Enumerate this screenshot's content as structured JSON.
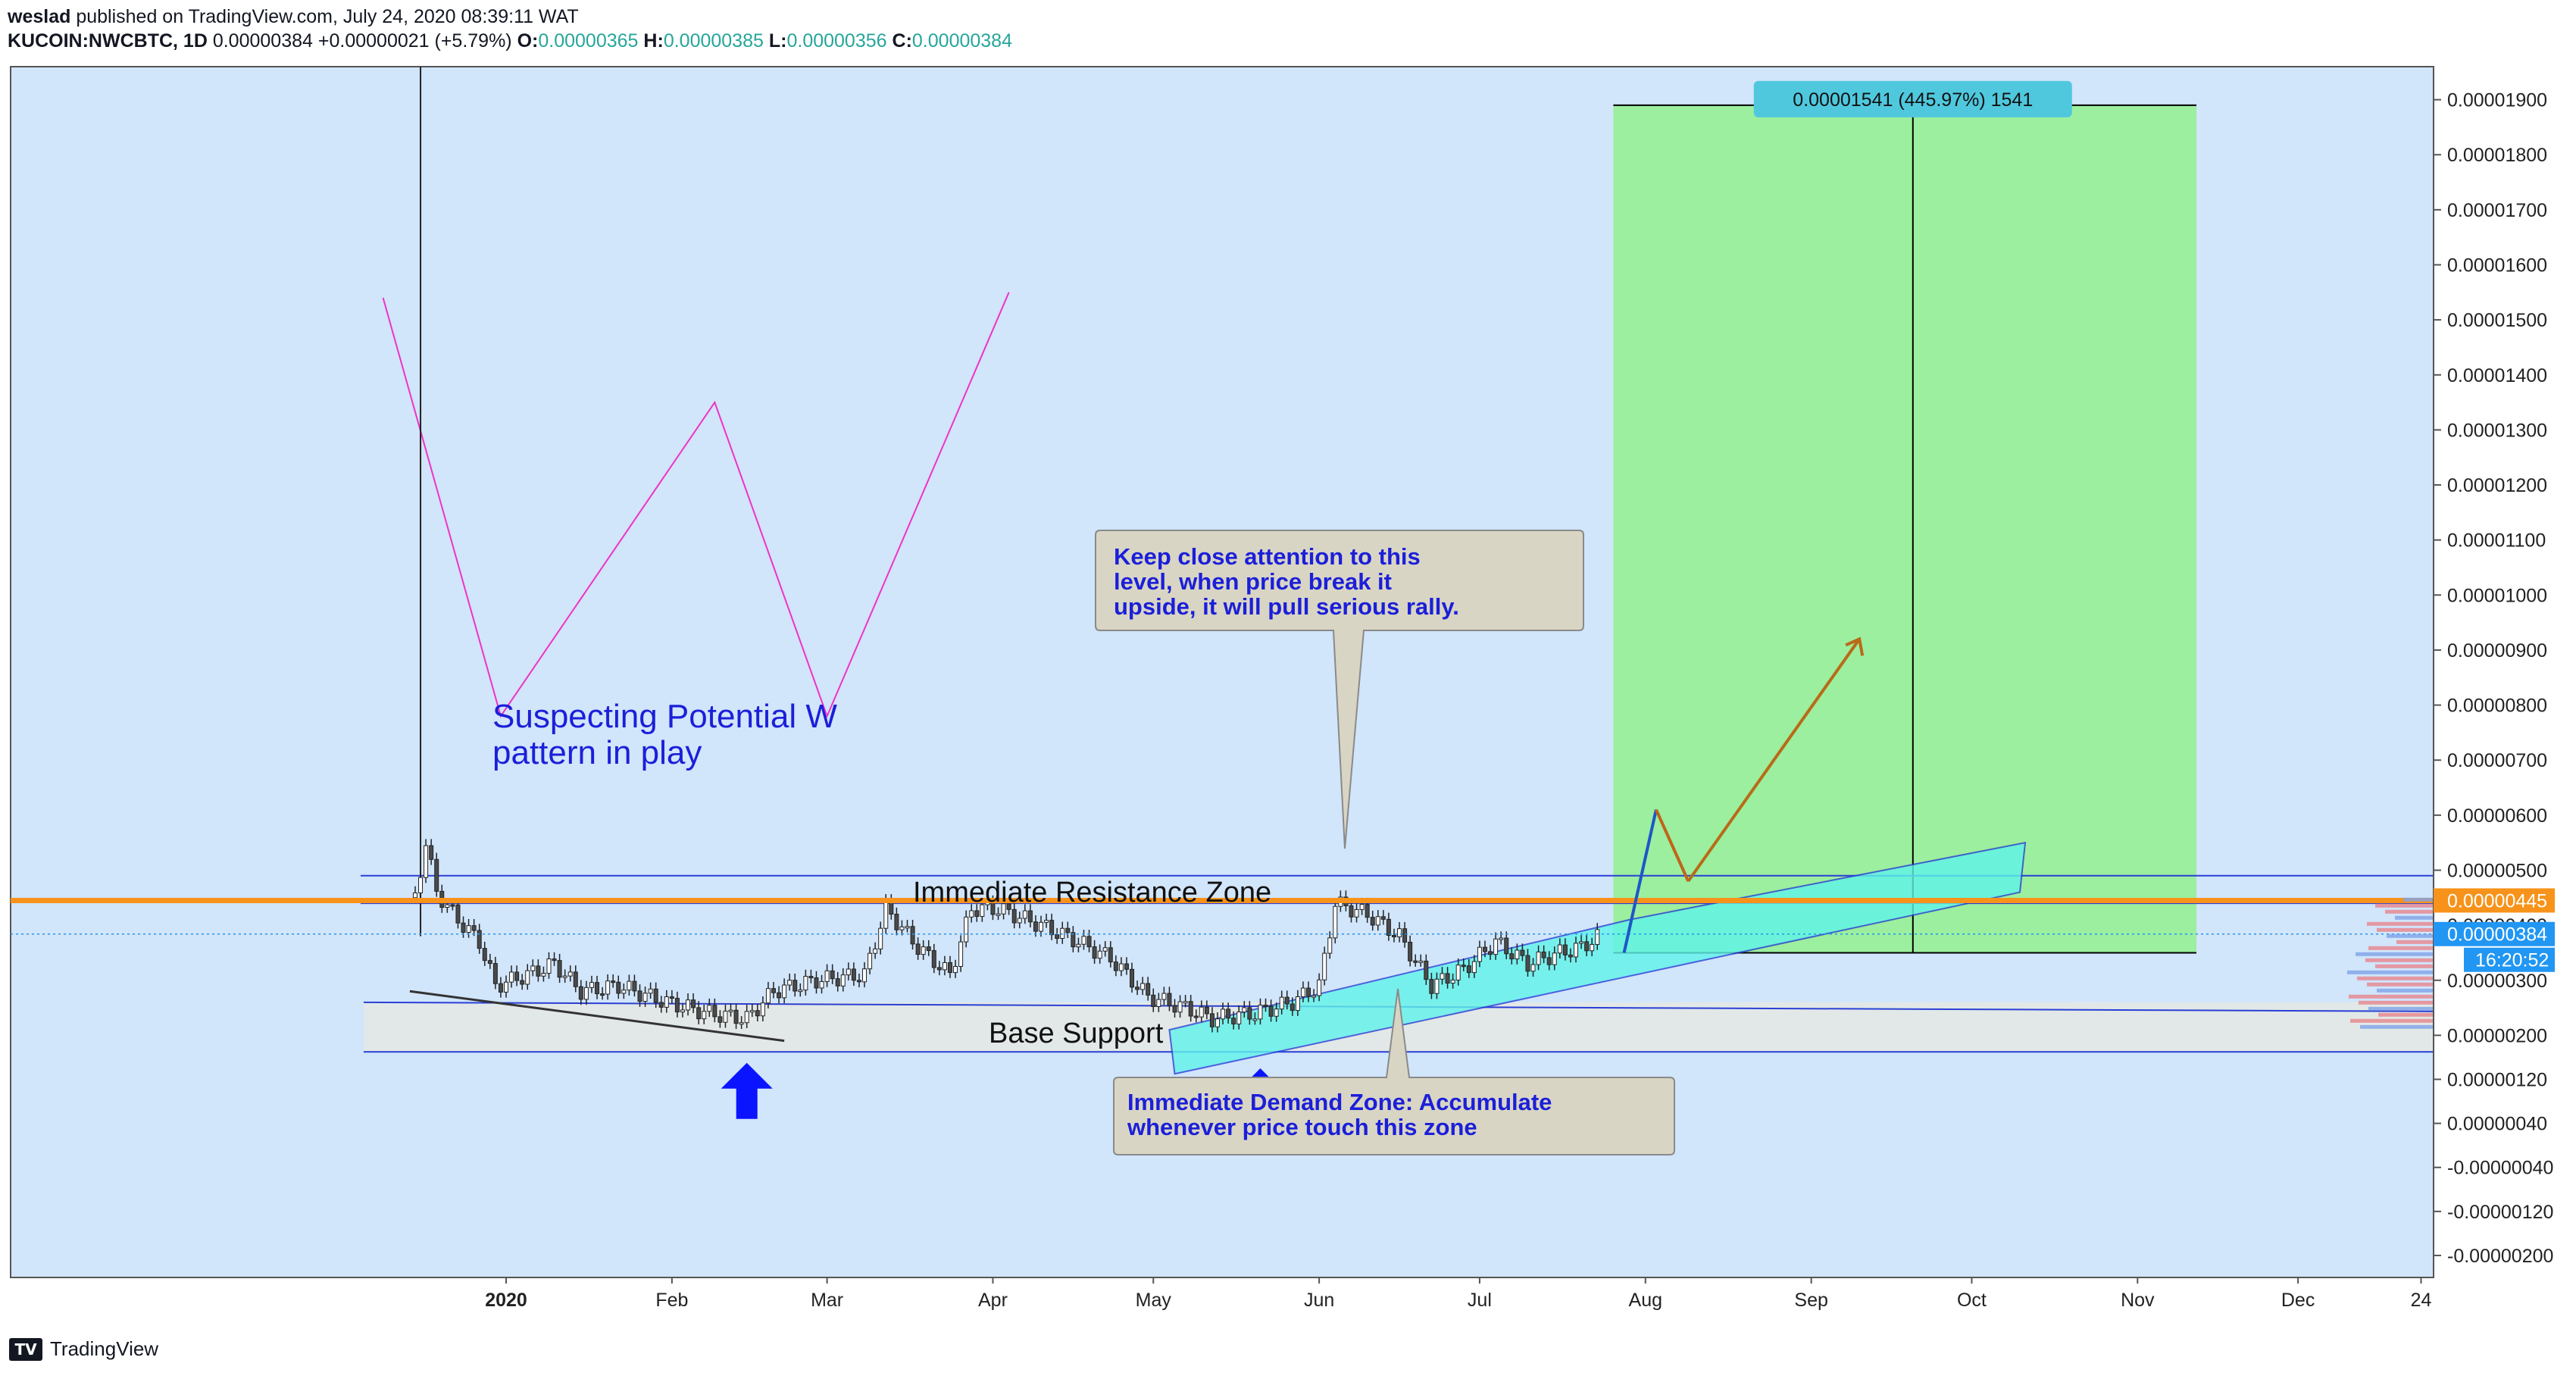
{
  "header": {
    "author": "weslad",
    "published_text": "published on TradingView.com, July 24, 2020 08:39:11 WAT",
    "symbol": "KUCOIN:NWCBTC, 1D",
    "last": "0.00000384",
    "change": "+0.00000021 (+5.79%)",
    "o_label": "O:",
    "o": "0.00000365",
    "h_label": "H:",
    "h": "0.00000385",
    "l_label": "L:",
    "l": "0.00000356",
    "c_label": "C:",
    "c": "0.00000384"
  },
  "footer": {
    "brand": "TradingView",
    "logo_text": "TV"
  },
  "chart_data": {
    "type": "candlestick",
    "timeframe": "1D",
    "ylim": [
      -2.4e-06,
      1.96e-05
    ],
    "y_ticks": [
      1.9e-05,
      1.8e-05,
      1.7e-05,
      1.6e-05,
      1.5e-05,
      1.4e-05,
      1.3e-05,
      1.2e-05,
      1.1e-05,
      1e-05,
      9e-06,
      8e-06,
      7e-06,
      6e-06,
      5e-06,
      4e-06,
      3e-06,
      2e-06,
      1.2e-06,
      4e-07,
      -4e-07,
      -1.2e-06,
      -2e-06
    ],
    "y_tick_labels": [
      "0.00001900",
      "0.00001800",
      "0.00001700",
      "0.00001600",
      "0.00001500",
      "0.00001400",
      "0.00001300",
      "0.00001200",
      "0.00001100",
      "0.00001000",
      "0.00000900",
      "0.00000800",
      "0.00000700",
      "0.00000600",
      "0.00000500",
      "0.00000400",
      "0.00000300",
      "0.00000200",
      "0.00000120",
      "0.00000040",
      "-0.00000040",
      "-0.00000120",
      "-0.00000200"
    ],
    "x_tick_labels": [
      {
        "label": "2020",
        "bold": true,
        "date": "2020-01-01"
      },
      {
        "label": "Feb",
        "date": "2020-02-01"
      },
      {
        "label": "Mar",
        "date": "2020-03-01"
      },
      {
        "label": "Apr",
        "date": "2020-04-01"
      },
      {
        "label": "May",
        "date": "2020-05-01"
      },
      {
        "label": "Jun",
        "date": "2020-06-01"
      },
      {
        "label": "Jul",
        "date": "2020-07-01"
      },
      {
        "label": "Aug",
        "date": "2020-08-01"
      },
      {
        "label": "Sep",
        "date": "2020-09-01"
      },
      {
        "label": "Oct",
        "date": "2020-10-01"
      },
      {
        "label": "Nov",
        "date": "2020-11-01"
      },
      {
        "label": "Dec",
        "date": "2020-12-01"
      },
      {
        "label": "24",
        "date": "2020-12-24"
      }
    ],
    "price_path": [
      [
        "2019-12-15",
        4.5e-06
      ],
      [
        "2019-12-17",
        5.5e-06
      ],
      [
        "2019-12-19",
        4.6e-06
      ],
      [
        "2019-12-23",
        4.1e-06
      ],
      [
        "2019-12-27",
        3.7e-06
      ],
      [
        "2019-12-30",
        2.9e-06
      ],
      [
        "2020-01-05",
        3.1e-06
      ],
      [
        "2020-01-10",
        3.3e-06
      ],
      [
        "2020-01-15",
        2.8e-06
      ],
      [
        "2020-01-22",
        2.9e-06
      ],
      [
        "2020-01-31",
        2.6e-06
      ],
      [
        "2020-02-08",
        2.4e-06
      ],
      [
        "2020-02-15",
        2.3e-06
      ],
      [
        "2020-02-20",
        2.8e-06
      ],
      [
        "2020-02-28",
        3e-06
      ],
      [
        "2020-03-08",
        3.1e-06
      ],
      [
        "2020-03-12",
        4.3e-06
      ],
      [
        "2020-03-18",
        3.6e-06
      ],
      [
        "2020-03-24",
        3.1e-06
      ],
      [
        "2020-03-28",
        4.3e-06
      ],
      [
        "2020-04-02",
        4.3e-06
      ],
      [
        "2020-04-10",
        4e-06
      ],
      [
        "2020-04-17",
        3.7e-06
      ],
      [
        "2020-04-23",
        3.4e-06
      ],
      [
        "2020-04-30",
        2.7e-06
      ],
      [
        "2020-05-07",
        2.5e-06
      ],
      [
        "2020-05-12",
        2.3e-06
      ],
      [
        "2020-05-20",
        2.4e-06
      ],
      [
        "2020-05-27",
        2.6e-06
      ],
      [
        "2020-06-01",
        2.9e-06
      ],
      [
        "2020-06-04",
        4.4e-06
      ],
      [
        "2020-06-10",
        4.2e-06
      ],
      [
        "2020-06-16",
        3.8e-06
      ],
      [
        "2020-06-22",
        2.9e-06
      ],
      [
        "2020-06-28",
        3.2e-06
      ],
      [
        "2020-07-04",
        3.7e-06
      ],
      [
        "2020-07-10",
        3.3e-06
      ],
      [
        "2020-07-16",
        3.5e-06
      ],
      [
        "2020-07-20",
        3.6e-06
      ],
      [
        "2020-07-24",
        3.84e-06
      ]
    ],
    "horizontal_levels": [
      {
        "value": 4.45e-06,
        "label": "0.00000445",
        "color": "#f7931a"
      },
      {
        "value": 3.84e-06,
        "label": "0.00000384",
        "color": "#2196f3",
        "countdown": "16:20:52"
      }
    ],
    "w_pattern": [
      [
        "2019-12-09",
        1.54e-05
      ],
      [
        "2019-12-31",
        7.8e-06
      ],
      [
        "2020-02-09",
        1.35e-05
      ],
      [
        "2020-03-01",
        7.8e-06
      ],
      [
        "2020-04-04",
        1.55e-05
      ]
    ],
    "resistance_zone": {
      "from": 4.4e-06,
      "to": 4.9e-06,
      "label": "Immediate Resistance Zone"
    },
    "support_zone": {
      "from": 1.7e-06,
      "to": 2.6e-06,
      "label": "Base Support"
    },
    "demand_channel_label": "Immediate Demand Zone: Accumulate whenever price touch this zone",
    "long_position": {
      "entry": 3.5e-06,
      "target": 1.89e-05,
      "label": "0.00001541 (445.97%) 1541"
    },
    "annotations": [
      {
        "text_lines": [
          "Suspecting Potential W",
          "pattern in play"
        ]
      },
      {
        "text_lines": [
          "Keep close attention to this",
          "level, when price break it",
          "upside, it will pull serious rally."
        ]
      },
      {
        "text_lines": [
          "Immediate Demand Zone: Accumulate",
          "whenever price touch this zone"
        ]
      }
    ],
    "colors": {
      "background": "#d1e5fb",
      "profit": "#9bef9e",
      "resistance": "#ff9800",
      "annotation_text": "#1b1fd9",
      "w_line": "#f032c8"
    }
  }
}
